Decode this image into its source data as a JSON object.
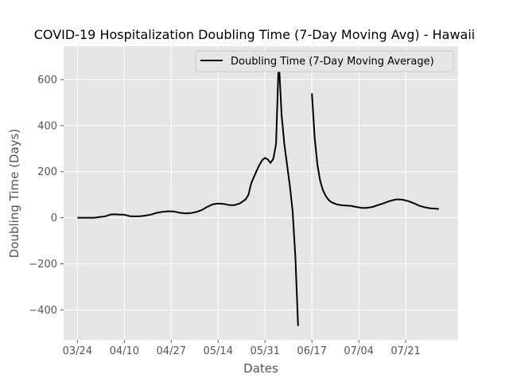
{
  "chart_data": {
    "type": "line",
    "title": "COVID-19 Hospitalization Doubling Time (7-Day Moving Avg) - Hawaii",
    "xlabel": "Dates",
    "ylabel": "Doubling Time (Days)",
    "grid": true,
    "legend_position": "top-right",
    "xtick_labels": [
      "03/24",
      "04/10",
      "04/27",
      "05/14",
      "05/31",
      "06/17",
      "07/04",
      "07/21"
    ],
    "ytick_values": [
      -400,
      -200,
      0,
      200,
      400,
      600
    ],
    "xlim": [
      "2020-03-19",
      "2020-08-09"
    ],
    "ylim": [
      -530,
      745
    ],
    "colors": {
      "background": "#e5e5e5",
      "grid": "#ffffff",
      "line": "#000000"
    },
    "series": [
      {
        "name": "Doubling Time (7-Day Moving Average)",
        "segments": [
          [
            [
              "2020-03-24",
              0
            ],
            [
              "2020-03-26",
              0
            ],
            [
              "2020-03-28",
              0
            ],
            [
              "2020-03-30",
              0
            ],
            [
              "2020-04-01",
              3
            ],
            [
              "2020-04-03",
              6
            ],
            [
              "2020-04-04",
              10
            ],
            [
              "2020-04-05",
              14
            ],
            [
              "2020-04-06",
              15
            ],
            [
              "2020-04-08",
              14
            ],
            [
              "2020-04-10",
              13
            ],
            [
              "2020-04-11",
              10
            ],
            [
              "2020-04-12",
              7
            ],
            [
              "2020-04-14",
              6
            ],
            [
              "2020-04-16",
              7
            ],
            [
              "2020-04-18",
              10
            ],
            [
              "2020-04-20",
              15
            ],
            [
              "2020-04-22",
              22
            ],
            [
              "2020-04-24",
              26
            ],
            [
              "2020-04-26",
              28
            ],
            [
              "2020-04-28",
              27
            ],
            [
              "2020-04-30",
              22
            ],
            [
              "2020-05-02",
              19
            ],
            [
              "2020-05-04",
              20
            ],
            [
              "2020-05-06",
              25
            ],
            [
              "2020-05-08",
              33
            ],
            [
              "2020-05-10",
              47
            ],
            [
              "2020-05-12",
              58
            ],
            [
              "2020-05-14",
              62
            ],
            [
              "2020-05-16",
              60
            ],
            [
              "2020-05-18",
              55
            ],
            [
              "2020-05-20",
              55
            ],
            [
              "2020-05-22",
              63
            ],
            [
              "2020-05-24",
              80
            ],
            [
              "2020-05-25",
              100
            ],
            [
              "2020-05-26",
              150
            ],
            [
              "2020-05-28",
              205
            ],
            [
              "2020-05-29",
              230
            ],
            [
              "2020-05-30",
              250
            ],
            [
              "2020-05-31",
              260
            ],
            [
              "2020-06-01",
              253
            ],
            [
              "2020-06-02",
              238
            ],
            [
              "2020-06-03",
              255
            ],
            [
              "2020-06-04",
              320
            ],
            [
              "2020-06-05",
              690
            ],
            [
              "2020-06-06",
              450
            ],
            [
              "2020-06-07",
              320
            ],
            [
              "2020-06-09",
              140
            ],
            [
              "2020-06-10",
              30
            ],
            [
              "2020-06-11",
              -170
            ],
            [
              "2020-06-12",
              -470
            ]
          ],
          [
            [
              "2020-06-17",
              540
            ],
            [
              "2020-06-18",
              350
            ],
            [
              "2020-06-19",
              230
            ],
            [
              "2020-06-20",
              160
            ],
            [
              "2020-06-21",
              120
            ],
            [
              "2020-06-22",
              95
            ],
            [
              "2020-06-23",
              78
            ],
            [
              "2020-06-24",
              68
            ],
            [
              "2020-06-26",
              58
            ],
            [
              "2020-06-28",
              54
            ],
            [
              "2020-07-01",
              52
            ],
            [
              "2020-07-03",
              47
            ],
            [
              "2020-07-05",
              43
            ],
            [
              "2020-07-07",
              43
            ],
            [
              "2020-07-09",
              47
            ],
            [
              "2020-07-11",
              55
            ],
            [
              "2020-07-13",
              63
            ],
            [
              "2020-07-15",
              72
            ],
            [
              "2020-07-17",
              78
            ],
            [
              "2020-07-18",
              80
            ],
            [
              "2020-07-20",
              78
            ],
            [
              "2020-07-22",
              72
            ],
            [
              "2020-07-24",
              63
            ],
            [
              "2020-07-26",
              52
            ],
            [
              "2020-07-28",
              45
            ],
            [
              "2020-07-30",
              41
            ],
            [
              "2020-08-01",
              39
            ],
            [
              "2020-08-02",
              38
            ]
          ]
        ]
      }
    ]
  }
}
